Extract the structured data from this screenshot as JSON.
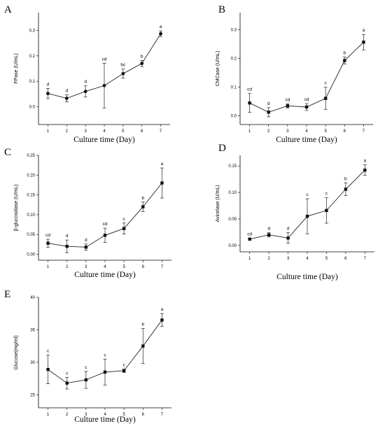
{
  "chart_data": [
    {
      "panel": "A",
      "type": "line",
      "xlabel": "Culture time (Day)",
      "ylabel": "FPase (U/mL)",
      "x": [
        1,
        2,
        3,
        4,
        5,
        6,
        7
      ],
      "values": [
        0.052,
        0.033,
        0.06,
        0.083,
        0.13,
        0.17,
        0.287
      ],
      "errors": [
        0.02,
        0.014,
        0.022,
        0.088,
        0.018,
        0.012,
        0.011
      ],
      "sig": [
        "d",
        "d",
        "d",
        "cd",
        "bc",
        "b",
        "a"
      ],
      "marker": "circle",
      "xlim": [
        0.5,
        7.5
      ],
      "ylim": [
        -0.07,
        0.37
      ],
      "yticks": [
        0.0,
        0.1,
        0.2,
        0.3
      ],
      "ytick_labels": [
        "0.0",
        "0.1",
        "0.2",
        "0.3"
      ]
    },
    {
      "panel": "B",
      "type": "line",
      "xlabel": "Culture time (Day)",
      "ylabel": "CMCase (U/mL)",
      "x": [
        1,
        2,
        3,
        4,
        5,
        6,
        7
      ],
      "values": [
        0.045,
        0.013,
        0.035,
        0.031,
        0.061,
        0.193,
        0.257
      ],
      "errors": [
        0.033,
        0.016,
        0.007,
        0.012,
        0.039,
        0.012,
        0.027
      ],
      "sig": [
        "cd",
        "d",
        "cd",
        "cd",
        "c",
        "b",
        "a"
      ],
      "marker": "square",
      "xlim": [
        0.5,
        7.5
      ],
      "ylim": [
        -0.03,
        0.36
      ],
      "yticks": [
        0.0,
        0.1,
        0.2,
        0.3
      ],
      "ytick_labels": [
        "0.0",
        "0.1",
        "0.2",
        "0.3"
      ]
    },
    {
      "panel": "C",
      "type": "line",
      "xlabel": "Culture time (Day)",
      "ylabel": "β-glucosidase (U/mL)",
      "x": [
        1,
        2,
        3,
        4,
        5,
        6,
        7
      ],
      "values": [
        0.028,
        0.02,
        0.018,
        0.048,
        0.065,
        0.12,
        0.18
      ],
      "errors": [
        0.01,
        0.016,
        0.008,
        0.018,
        0.014,
        0.012,
        0.038
      ],
      "sig": [
        "cd",
        "d",
        "d",
        "cd",
        "c",
        "b",
        "a"
      ],
      "marker": "square",
      "xlim": [
        0.5,
        7.5
      ],
      "ylim": [
        -0.015,
        0.25
      ],
      "yticks": [
        0.0,
        0.05,
        0.1,
        0.15,
        0.2,
        0.25
      ],
      "ytick_labels": [
        "0.00",
        "0.05",
        "0.10",
        "0.15",
        "0.20",
        "0.25"
      ]
    },
    {
      "panel": "D",
      "type": "line",
      "xlabel": "Culture time (Day)",
      "ylabel": "Avicelase (U/mL)",
      "x": [
        1,
        2,
        3,
        4,
        5,
        6,
        7
      ],
      "values": [
        0.012,
        0.02,
        0.014,
        0.055,
        0.066,
        0.106,
        0.142
      ],
      "errors": [
        0.002,
        0.004,
        0.01,
        0.033,
        0.024,
        0.012,
        0.01
      ],
      "sig": [
        "cd",
        "d",
        "d",
        "c",
        "c",
        "b",
        "a"
      ],
      "marker": "square",
      "xlim": [
        0.5,
        7.5
      ],
      "ylim": [
        -0.012,
        0.17
      ],
      "yticks": [
        0.0,
        0.05,
        0.1,
        0.15
      ],
      "ytick_labels": [
        "0.00",
        "0.05",
        "0.10",
        "0.15"
      ]
    },
    {
      "panel": "E",
      "type": "line",
      "xlabel": "Culture time (Day)",
      "ylabel": "Glucose(mg/ml)",
      "x": [
        1,
        2,
        3,
        4,
        5,
        6,
        7
      ],
      "values": [
        28.9,
        26.8,
        27.3,
        28.5,
        28.7,
        32.5,
        36.5
      ],
      "errors": [
        2.2,
        0.9,
        1.3,
        2.0,
        0.25,
        2.7,
        1.0
      ],
      "sig": [
        "c",
        "c",
        "c",
        "c",
        "c",
        "b",
        "a"
      ],
      "marker": "square",
      "xlim": [
        0.5,
        7.5
      ],
      "ylim": [
        23,
        40
      ],
      "yticks": [
        25,
        30,
        35,
        40
      ],
      "ytick_labels": [
        "25",
        "30",
        "35",
        "40"
      ]
    }
  ]
}
